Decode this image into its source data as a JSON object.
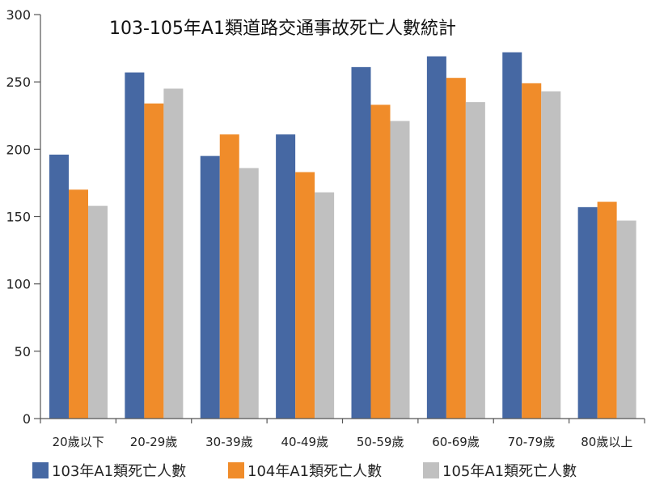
{
  "chart_data": {
    "type": "bar",
    "title": "103-105年A1類道路交通事故死亡人數統計",
    "xlabel": "",
    "ylabel": "",
    "ylim": [
      0,
      300
    ],
    "yticks": [
      0,
      50,
      100,
      150,
      200,
      250,
      300
    ],
    "grid": false,
    "legend_position": "bottom",
    "categories": [
      "20歲以下",
      "20-29歲",
      "30-39歲",
      "40-49歲",
      "50-59歲",
      "60-69歲",
      "70-79歲",
      "80歲以上"
    ],
    "series": [
      {
        "name": "103年A1類死亡人數",
        "color": "#4668a3",
        "values": [
          196,
          257,
          195,
          211,
          261,
          269,
          272,
          157
        ]
      },
      {
        "name": "104年A1類死亡人數",
        "color": "#f08c2a",
        "values": [
          170,
          234,
          211,
          183,
          233,
          253,
          249,
          161
        ]
      },
      {
        "name": "105年A1類死亡人數",
        "color": "#c0c0c0",
        "values": [
          158,
          245,
          186,
          168,
          221,
          235,
          243,
          147
        ]
      }
    ]
  }
}
